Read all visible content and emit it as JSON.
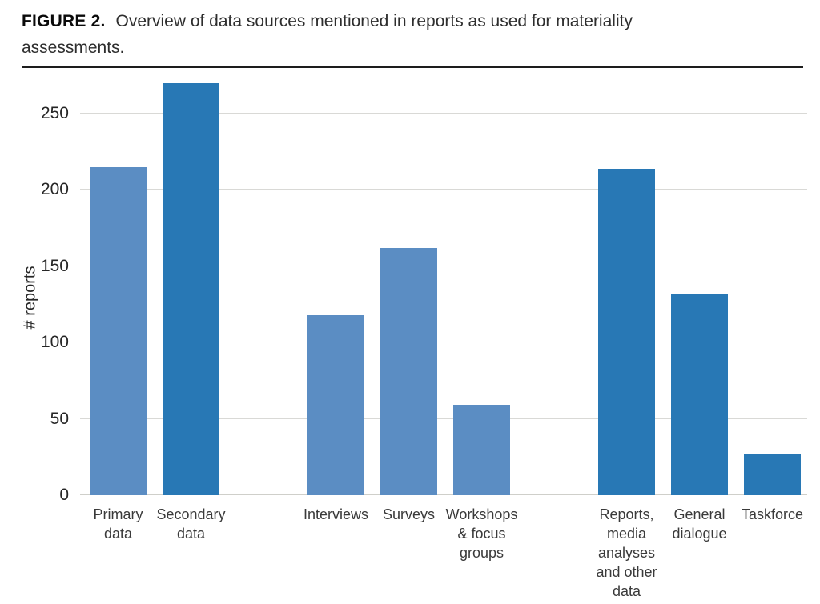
{
  "figure": {
    "label": "FIGURE 2.",
    "caption_line_1": "Overview of data sources mentioned in reports as used for materiality",
    "caption_line_2": "assessments."
  },
  "chart_data": {
    "type": "bar",
    "title": "",
    "xlabel": "",
    "ylabel": "# reports",
    "ylim": [
      0,
      272
    ],
    "yticks": [
      0,
      50,
      100,
      150,
      200,
      250
    ],
    "grid": true,
    "legend": "none",
    "categories": [
      "Primary data",
      "Secondary data",
      "Interviews",
      "Surveys",
      "Workshops & focus groups",
      "Reports, media analyses and other data",
      "General dialogue",
      "Taskforce"
    ],
    "values": [
      215,
      270,
      118,
      162,
      59,
      214,
      132,
      27
    ],
    "bar_colors": [
      "#5b8dc3",
      "#2878b5",
      "#5b8dc3",
      "#5b8dc3",
      "#5b8dc3",
      "#2878b5",
      "#2878b5",
      "#2878b5"
    ],
    "groups": [
      [
        0,
        1
      ],
      [
        2,
        3,
        4
      ],
      [
        5,
        6,
        7
      ]
    ],
    "label_lines": [
      [
        "Primary",
        "data"
      ],
      [
        "Secondary",
        "data"
      ],
      [
        "Interviews"
      ],
      [
        "Surveys"
      ],
      [
        "Workshops",
        "& focus",
        "groups"
      ],
      [
        "Reports,",
        "media",
        "analyses",
        "and other",
        "data"
      ],
      [
        "General",
        "dialogue"
      ],
      [
        "Taskforce"
      ]
    ],
    "palette": {
      "light_blue": "#5b8dc3",
      "dark_blue": "#2878b5",
      "gridline": "#d9d9d6"
    }
  }
}
